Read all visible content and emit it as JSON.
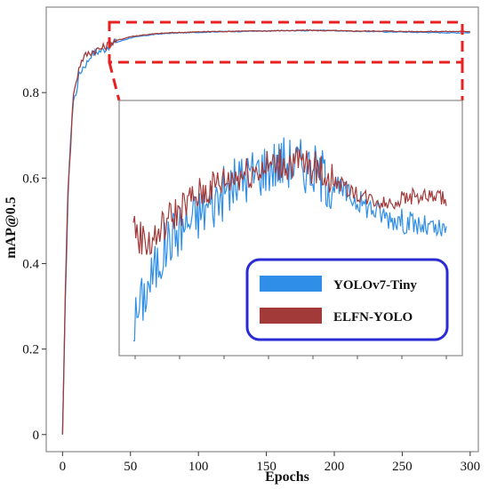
{
  "chart_data": {
    "type": "line",
    "xlabel": "Epochs",
    "ylabel": "mAP@0.5",
    "xlim": [
      -12,
      306
    ],
    "ylim": [
      -0.04,
      1.0
    ],
    "x_ticks": [
      0,
      50,
      100,
      150,
      200,
      250,
      300
    ],
    "y_ticks": [
      0,
      0.2,
      0.4,
      0.6,
      0.8
    ],
    "y_tick_labels": [
      "0",
      "0.2",
      "0.4",
      "0.6",
      "0.8"
    ],
    "grid": false,
    "legend_position": "bottom-right of inset",
    "inset": {
      "description_zoom_x": [
        40,
        300
      ],
      "zoom_y": [
        0.928,
        0.952
      ]
    },
    "series": [
      {
        "name": "YOLOv7-Tiny",
        "color": "#2f8fe8",
        "x": [
          0,
          2,
          4,
          6,
          8,
          10,
          12,
          15,
          18,
          21,
          25,
          30,
          35,
          40,
          50,
          60,
          70,
          80,
          90,
          100,
          110,
          120,
          130,
          140,
          150,
          160,
          170,
          180,
          190,
          200,
          210,
          220,
          230,
          240,
          250,
          260,
          270,
          280,
          290,
          300
        ],
        "values": [
          0.0,
          0.3,
          0.55,
          0.7,
          0.78,
          0.8,
          0.84,
          0.86,
          0.87,
          0.89,
          0.895,
          0.9,
          0.912,
          0.918,
          0.928,
          0.933,
          0.937,
          0.939,
          0.94,
          0.941,
          0.942,
          0.943,
          0.943,
          0.944,
          0.944,
          0.945,
          0.945,
          0.945,
          0.946,
          0.945,
          0.944,
          0.943,
          0.943,
          0.942,
          0.942,
          0.941,
          0.941,
          0.94,
          0.94,
          0.94
        ]
      },
      {
        "name": "ELFN-YOLO",
        "color": "#a23a3a",
        "x": [
          0,
          2,
          4,
          6,
          8,
          10,
          12,
          15,
          18,
          21,
          25,
          30,
          35,
          40,
          50,
          60,
          70,
          80,
          90,
          100,
          110,
          120,
          130,
          140,
          150,
          160,
          170,
          180,
          190,
          200,
          210,
          220,
          230,
          240,
          250,
          260,
          270,
          280,
          290,
          300
        ],
        "values": [
          0.0,
          0.32,
          0.58,
          0.68,
          0.8,
          0.82,
          0.86,
          0.88,
          0.89,
          0.895,
          0.9,
          0.905,
          0.915,
          0.922,
          0.931,
          0.935,
          0.938,
          0.94,
          0.941,
          0.942,
          0.943,
          0.943,
          0.944,
          0.944,
          0.944,
          0.945,
          0.945,
          0.946,
          0.945,
          0.945,
          0.944,
          0.944,
          0.944,
          0.944,
          0.943,
          0.943,
          0.943,
          0.943,
          0.943,
          0.943
        ]
      }
    ],
    "legend": {
      "entries": [
        {
          "label": "YOLOv7-Tiny",
          "color": "#2f8fe8"
        },
        {
          "label": "ELFN-YOLO",
          "color": "#a23a3a"
        }
      ],
      "border_color": "#2b2bd6"
    },
    "highlight_color": "#e82020"
  }
}
